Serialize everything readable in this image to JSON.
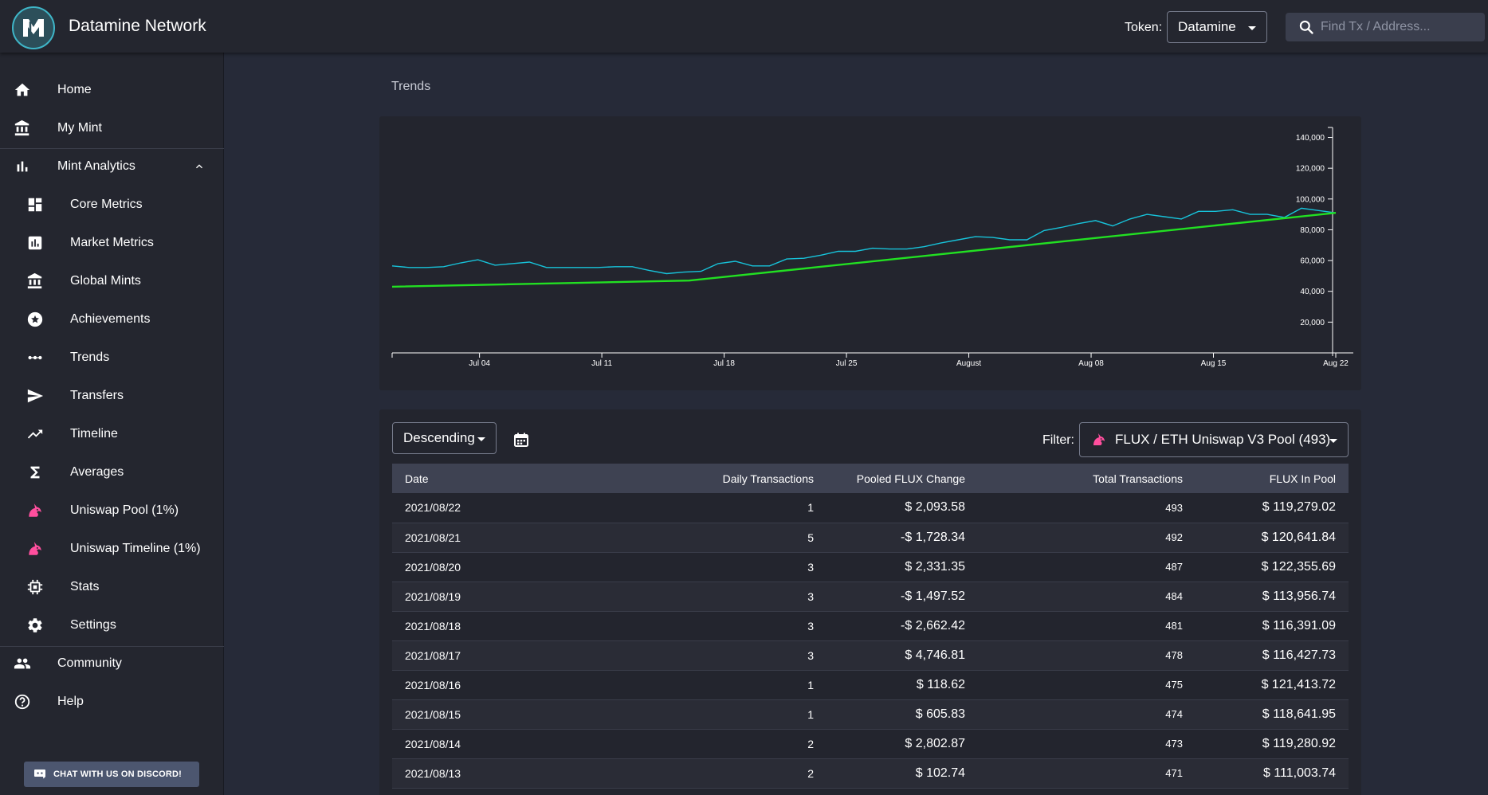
{
  "header": {
    "app_title": "Datamine Network",
    "token_label": "Token:",
    "token_value": "Datamine",
    "search_placeholder": "Find Tx / Address..."
  },
  "colors": {
    "background": "#262a38",
    "panel": "#23252e",
    "sidebar": "#24262f",
    "accent_teal": "#3fb6c8",
    "series_line": "#17c3da",
    "trend_line": "#22e022",
    "uniswap_pink": "#ff4f9e"
  },
  "sidebar": {
    "items": [
      {
        "label": "Home",
        "icon": "home-icon",
        "level": 0
      },
      {
        "label": "My Mint",
        "icon": "bank-icon",
        "level": 0
      },
      {
        "label": "Mint Analytics",
        "icon": "bar-chart-icon",
        "level": 0,
        "expanded": true
      },
      {
        "label": "Core Metrics",
        "icon": "dashboard-icon",
        "level": 1
      },
      {
        "label": "Market Metrics",
        "icon": "assessment-icon",
        "level": 1
      },
      {
        "label": "Global Mints",
        "icon": "bank-icon",
        "level": 1
      },
      {
        "label": "Achievements",
        "icon": "star-circle-icon",
        "level": 1
      },
      {
        "label": "Trends",
        "icon": "dots-line-icon",
        "level": 1
      },
      {
        "label": "Transfers",
        "icon": "send-icon",
        "level": 1
      },
      {
        "label": "Timeline",
        "icon": "trending-up-icon",
        "level": 1
      },
      {
        "label": "Averages",
        "icon": "sigma-icon",
        "level": 1
      },
      {
        "label": "Uniswap Pool (1%)",
        "icon": "unicorn-icon",
        "level": 1
      },
      {
        "label": "Uniswap Timeline (1%)",
        "icon": "unicorn-icon",
        "level": 1
      },
      {
        "label": "Stats",
        "icon": "chip-icon",
        "level": 1
      },
      {
        "label": "Settings",
        "icon": "gear-icon",
        "level": 1
      },
      {
        "label": "Community",
        "icon": "people-icon",
        "level": 0
      },
      {
        "label": "Help",
        "icon": "help-icon",
        "level": 0
      }
    ],
    "discord_label": "CHAT WITH US ON DISCORD!"
  },
  "main": {
    "title": "Trends"
  },
  "chart_data": {
    "type": "line",
    "title": "",
    "xlabel": "",
    "ylabel": "",
    "x_ticks": [
      "Jul 04",
      "Jul 11",
      "Jul 18",
      "Jul 25",
      "August",
      "Aug 08",
      "Aug 15",
      "Aug 22"
    ],
    "y_ticks": [
      20000,
      40000,
      60000,
      80000,
      100000,
      120000,
      140000
    ],
    "y_tick_labels": [
      "20,000",
      "40,000",
      "60,000",
      "80,000",
      "100,000",
      "120,000",
      "140,000"
    ],
    "ylim": [
      0,
      147000
    ],
    "x_start": "2021-06-29",
    "x_end": "2021-08-22",
    "grid": false,
    "axis_side": "right",
    "series": [
      {
        "color": "#17c3da",
        "values": [
          56500,
          55500,
          55500,
          56000,
          58500,
          60500,
          57000,
          58000,
          59000,
          55500,
          55500,
          55500,
          55500,
          56000,
          56000,
          53500,
          51500,
          52500,
          53000,
          58000,
          59500,
          56500,
          56500,
          61000,
          61500,
          63500,
          66000,
          66000,
          68000,
          67500,
          67500,
          69000,
          71500,
          73500,
          75500,
          75000,
          73500,
          73500,
          79500,
          81500,
          84000,
          86000,
          82500,
          87000,
          90000,
          88500,
          87000,
          92000,
          92000,
          93000,
          90000,
          90000,
          88000,
          94000,
          92500,
          91000
        ]
      },
      {
        "color": "#22e022",
        "points": [
          {
            "x": "2021-06-29",
            "y": 43000
          },
          {
            "x": "2021-07-16",
            "y": 47000
          },
          {
            "x": "2021-08-22",
            "y": 91000
          }
        ]
      }
    ]
  },
  "table": {
    "sort_value": "Descending",
    "filter_label": "Filter:",
    "filter_value": "FLUX / ETH Uniswap V3 Pool (493)",
    "columns": [
      "Date",
      "Daily Transactions",
      "Pooled FLUX Change",
      "Total Transactions",
      "FLUX In Pool"
    ],
    "rows": [
      {
        "date": "2021/08/22",
        "daily_tx": "1",
        "change": "$ 2,093.58",
        "total_tx": "493",
        "pool": "$ 119,279.02"
      },
      {
        "date": "2021/08/21",
        "daily_tx": "5",
        "change": "-$ 1,728.34",
        "total_tx": "492",
        "pool": "$ 120,641.84"
      },
      {
        "date": "2021/08/20",
        "daily_tx": "3",
        "change": "$ 2,331.35",
        "total_tx": "487",
        "pool": "$ 122,355.69"
      },
      {
        "date": "2021/08/19",
        "daily_tx": "3",
        "change": "-$ 1,497.52",
        "total_tx": "484",
        "pool": "$ 113,956.74"
      },
      {
        "date": "2021/08/18",
        "daily_tx": "3",
        "change": "-$ 2,662.42",
        "total_tx": "481",
        "pool": "$ 116,391.09"
      },
      {
        "date": "2021/08/17",
        "daily_tx": "3",
        "change": "$ 4,746.81",
        "total_tx": "478",
        "pool": "$ 116,427.73"
      },
      {
        "date": "2021/08/16",
        "daily_tx": "1",
        "change": "$ 118.62",
        "total_tx": "475",
        "pool": "$ 121,413.72"
      },
      {
        "date": "2021/08/15",
        "daily_tx": "1",
        "change": "$ 605.83",
        "total_tx": "474",
        "pool": "$ 118,641.95"
      },
      {
        "date": "2021/08/14",
        "daily_tx": "2",
        "change": "$ 2,802.87",
        "total_tx": "473",
        "pool": "$ 119,280.92"
      },
      {
        "date": "2021/08/13",
        "daily_tx": "2",
        "change": "$ 102.74",
        "total_tx": "471",
        "pool": "$ 111,003.74"
      }
    ]
  }
}
